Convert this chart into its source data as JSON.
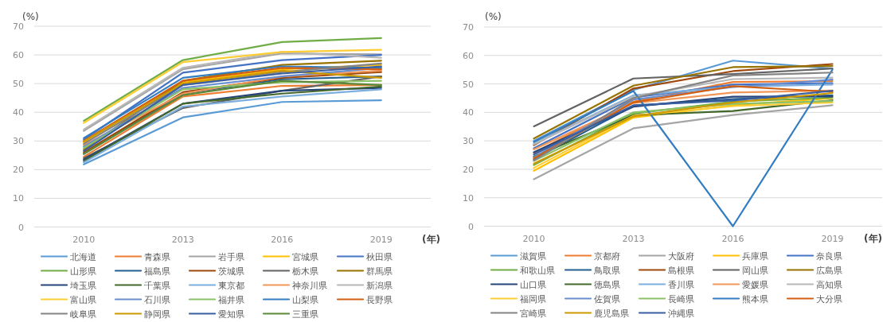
{
  "chart_data": [
    {
      "type": "line",
      "ylabel": "(%)",
      "xlabel": "(年)",
      "categories": [
        "2010",
        "2013",
        "2016",
        "2019"
      ],
      "ylim": [
        0,
        70
      ],
      "yticks": [
        0,
        10,
        20,
        30,
        40,
        50,
        60,
        70
      ],
      "grid": "y",
      "legend": "bottom",
      "series": [
        {
          "name": "北海道",
          "color": "#5B9BD5",
          "values": [
            21.8,
            38.2,
            43.6,
            44.2
          ]
        },
        {
          "name": "青森県",
          "color": "#ED7D31",
          "values": [
            24.5,
            45.5,
            49.2,
            49.5
          ]
        },
        {
          "name": "岩手県",
          "color": "#A5A5A5",
          "values": [
            33.5,
            55.0,
            60.5,
            60.2
          ]
        },
        {
          "name": "宮城県",
          "color": "#FFC000",
          "values": [
            29.5,
            50.5,
            55.0,
            56.5
          ]
        },
        {
          "name": "秋田県",
          "color": "#4472C4",
          "values": [
            30.5,
            53.8,
            58.2,
            60.0
          ]
        },
        {
          "name": "山形県",
          "color": "#70AD47",
          "values": [
            37.0,
            58.2,
            64.5,
            65.9
          ]
        },
        {
          "name": "福島県",
          "color": "#255E91",
          "values": [
            25.5,
            46.5,
            51.5,
            52.5
          ]
        },
        {
          "name": "茨城県",
          "color": "#9E480E",
          "values": [
            26.0,
            47.0,
            52.0,
            54.0
          ]
        },
        {
          "name": "栃木県",
          "color": "#636363",
          "values": [
            24.0,
            41.5,
            47.5,
            52.5
          ]
        },
        {
          "name": "群馬県",
          "color": "#997300",
          "values": [
            27.0,
            51.0,
            56.5,
            58.0
          ]
        },
        {
          "name": "埼玉県",
          "color": "#264478",
          "values": [
            23.5,
            43.0,
            47.5,
            48.5
          ]
        },
        {
          "name": "千葉県",
          "color": "#43682B",
          "values": [
            23.0,
            43.0,
            46.5,
            49.0
          ]
        },
        {
          "name": "東京都",
          "color": "#7CAFDD",
          "values": [
            22.5,
            42.0,
            45.5,
            48.0
          ]
        },
        {
          "name": "神奈川県",
          "color": "#F1975A",
          "values": [
            28.5,
            46.5,
            52.5,
            54.5
          ]
        },
        {
          "name": "新潟県",
          "color": "#B7B7B7",
          "values": [
            34.0,
            55.5,
            61.0,
            59.0
          ]
        },
        {
          "name": "富山県",
          "color": "#FFCD33",
          "values": [
            36.3,
            57.5,
            61.0,
            61.8
          ]
        },
        {
          "name": "石川県",
          "color": "#698ED0",
          "values": [
            28.0,
            48.5,
            52.5,
            55.5
          ]
        },
        {
          "name": "福井県",
          "color": "#8CC168",
          "values": [
            27.5,
            48.0,
            50.5,
            51.0
          ]
        },
        {
          "name": "山梨県",
          "color": "#327DC2",
          "values": [
            31.0,
            52.0,
            56.0,
            55.5
          ]
        },
        {
          "name": "長野県",
          "color": "#D26012",
          "values": [
            30.0,
            51.0,
            55.5,
            55.0
          ]
        },
        {
          "name": "岐阜県",
          "color": "#848484",
          "values": [
            29.0,
            49.5,
            54.0,
            57.0
          ]
        },
        {
          "name": "静岡県",
          "color": "#CC9A00",
          "values": [
            29.8,
            50.0,
            54.5,
            52.0
          ]
        },
        {
          "name": "愛知県",
          "color": "#3A5FA0",
          "values": [
            26.5,
            49.5,
            53.5,
            56.0
          ]
        },
        {
          "name": "三重県",
          "color": "#5A8A39",
          "values": [
            25.5,
            46.0,
            51.0,
            49.5
          ]
        }
      ]
    },
    {
      "type": "line",
      "ylabel": "(%)",
      "xlabel": "(年)",
      "categories": [
        "2010",
        "2013",
        "2016",
        "2019"
      ],
      "ylim": [
        0,
        70
      ],
      "yticks": [
        0,
        10,
        20,
        30,
        40,
        50,
        60,
        70
      ],
      "grid": "y",
      "legend": "bottom",
      "series": [
        {
          "name": "滋賀県",
          "color": "#5B9BD5",
          "values": [
            30.0,
            47.9,
            58.2,
            55.4
          ]
        },
        {
          "name": "京都府",
          "color": "#ED7D31",
          "values": [
            25.8,
            43.8,
            50.7,
            51.0
          ]
        },
        {
          "name": "大阪府",
          "color": "#A5A5A5",
          "values": [
            16.5,
            34.4,
            39.1,
            42.5
          ]
        },
        {
          "name": "兵庫県",
          "color": "#FFC000",
          "values": [
            19.5,
            38.2,
            42.5,
            45.0
          ]
        },
        {
          "name": "奈良県",
          "color": "#4472C4",
          "values": [
            27.4,
            45.2,
            49.8,
            50.3
          ]
        },
        {
          "name": "和歌山県",
          "color": "#70AD47",
          "values": [
            21.5,
            39.6,
            43.8,
            45.2
          ]
        },
        {
          "name": "鳥取県",
          "color": "#255E91",
          "values": [
            23.5,
            42.3,
            44.7,
            46.0
          ]
        },
        {
          "name": "島根県",
          "color": "#9E480E",
          "values": [
            28.5,
            48.4,
            54.5,
            57.0
          ]
        },
        {
          "name": "岡山県",
          "color": "#636363",
          "values": [
            35.1,
            51.9,
            53.5,
            55.4
          ]
        },
        {
          "name": "広島県",
          "color": "#997300",
          "values": [
            30.8,
            49.4,
            55.9,
            56.3
          ]
        },
        {
          "name": "山口県",
          "color": "#264478",
          "values": [
            26.0,
            42.0,
            45.5,
            45.6
          ]
        },
        {
          "name": "徳島県",
          "color": "#43682B",
          "values": [
            24.5,
            39.0,
            40.5,
            44.3
          ]
        },
        {
          "name": "香川県",
          "color": "#7CAFDD",
          "values": [
            29.0,
            46.0,
            49.0,
            49.8
          ]
        },
        {
          "name": "愛媛県",
          "color": "#F1975A",
          "values": [
            27.0,
            43.3,
            47.0,
            47.7
          ]
        },
        {
          "name": "高知県",
          "color": "#B7B7B7",
          "values": [
            28.8,
            45.6,
            51.7,
            52.2
          ]
        },
        {
          "name": "福岡県",
          "color": "#FFCD33",
          "values": [
            20.5,
            38.8,
            42.2,
            43.5
          ]
        },
        {
          "name": "佐賀県",
          "color": "#698ED0",
          "values": [
            24.2,
            44.5,
            48.9,
            51.5
          ]
        },
        {
          "name": "長崎県",
          "color": "#8CC168",
          "values": [
            23.0,
            40.0,
            43.0,
            44.0
          ]
        },
        {
          "name": "熊本県",
          "color": "#327DC2",
          "values": [
            29.6,
            47.5,
            0,
            55.0
          ]
        },
        {
          "name": "大分県",
          "color": "#D26012",
          "values": [
            23.8,
            43.5,
            49.2,
            47.2
          ]
        },
        {
          "name": "宮崎県",
          "color": "#848484",
          "values": [
            23.0,
            45.0,
            53.0,
            54.0
          ]
        },
        {
          "name": "鹿児島県",
          "color": "#CC9A00",
          "values": [
            22.0,
            38.6,
            43.5,
            46.8
          ]
        },
        {
          "name": "沖縄県",
          "color": "#3A5FA0",
          "values": [
            25.2,
            42.5,
            44.2,
            47.6
          ]
        }
      ]
    }
  ]
}
